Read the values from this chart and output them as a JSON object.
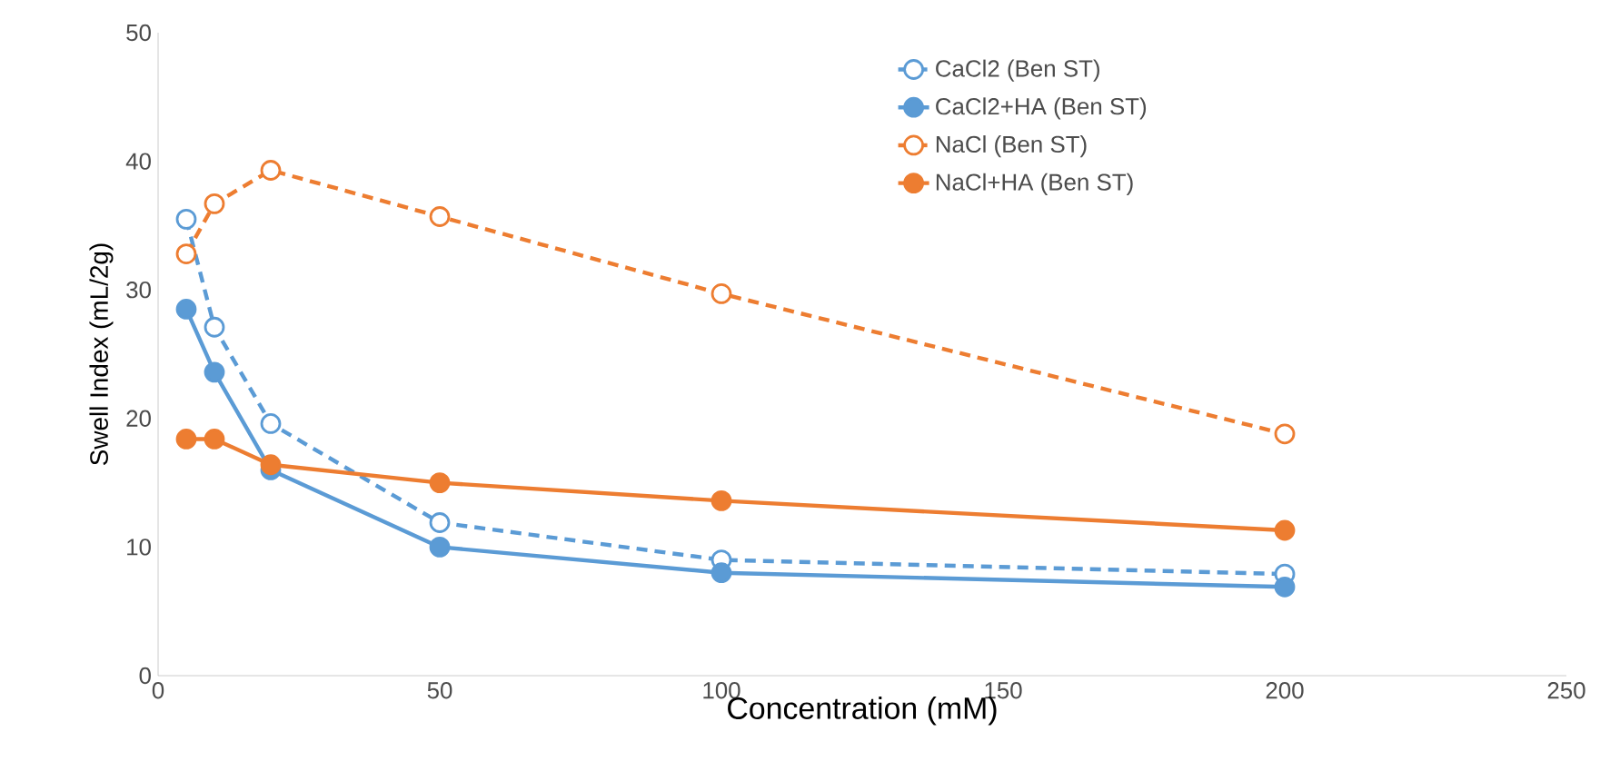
{
  "chart_data": {
    "type": "line",
    "xlabel": "Concentration (mM)",
    "ylabel": "Swell Index (mL/2g)",
    "xlim": [
      0,
      250
    ],
    "ylim": [
      0,
      50
    ],
    "xticks": [
      0,
      50,
      100,
      150,
      200,
      250
    ],
    "yticks": [
      0,
      10,
      20,
      30,
      40,
      50
    ],
    "x": [
      5,
      10,
      20,
      50,
      100,
      200
    ],
    "marker": "circle",
    "legend": "top right",
    "grid": false,
    "series": [
      {
        "name": "CaCl2 (Ben ST)",
        "color": "#5b9bd5",
        "line_style": "dashed",
        "values": [
          35.5,
          27.1,
          19.6,
          11.9,
          9.0,
          7.9
        ]
      },
      {
        "name": "CaCl2+HA (Ben ST)",
        "color": "#5b9bd5",
        "line_style": "solid",
        "values": [
          28.5,
          23.6,
          16.0,
          10.0,
          8.0,
          6.9
        ]
      },
      {
        "name": "NaCl (Ben ST)",
        "color": "#ed7d31",
        "line_style": "dashed",
        "values": [
          32.8,
          36.7,
          39.3,
          35.7,
          29.7,
          18.8
        ]
      },
      {
        "name": "NaCl+HA (Ben ST)",
        "color": "#ed7d31",
        "line_style": "solid",
        "values": [
          18.4,
          18.4,
          16.4,
          15.0,
          13.6,
          11.3
        ]
      }
    ]
  }
}
